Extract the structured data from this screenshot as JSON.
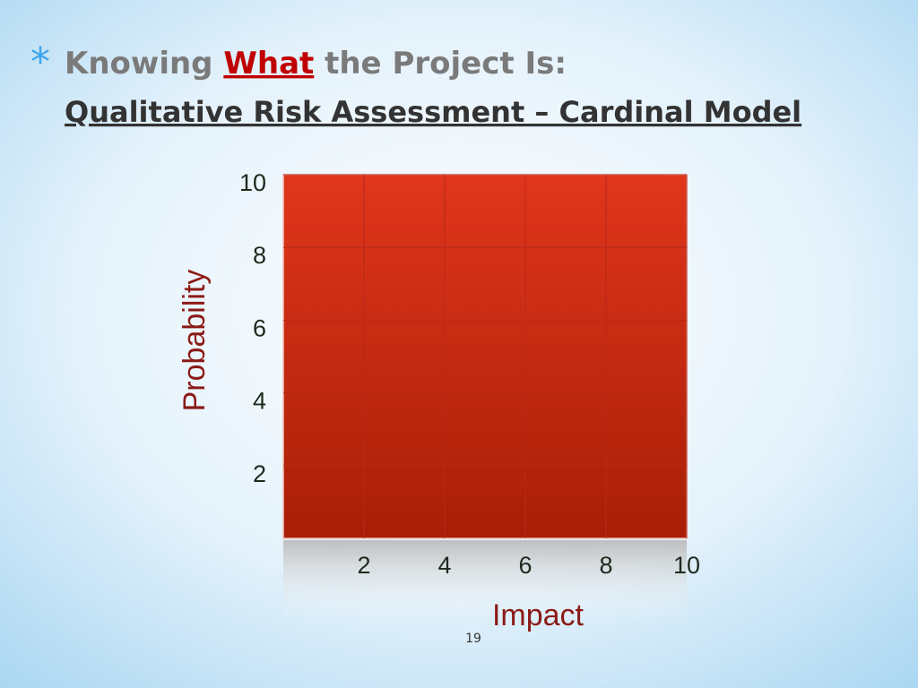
{
  "slide": {
    "bullet": "*",
    "title_parts": [
      "Knowing ",
      "What",
      " the Project Is:"
    ],
    "subtitle": "Qualitative Risk Assessment – Cardinal Model",
    "page_number": "19"
  },
  "chart_data": {
    "type": "matrix",
    "xlabel": "Impact",
    "ylabel": "Probability",
    "xlim": [
      0,
      10
    ],
    "ylim": [
      0,
      10
    ],
    "xticks": [
      2,
      4,
      6,
      8,
      10
    ],
    "yticks": [
      2,
      4,
      6,
      8,
      10
    ],
    "grid": true,
    "color": "#d8311a"
  }
}
